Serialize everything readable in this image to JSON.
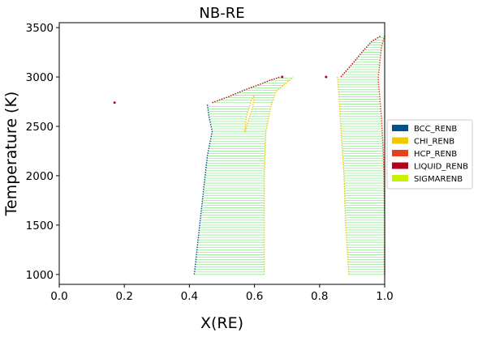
{
  "chart_data": {
    "type": "scatter",
    "title": "NB-RE",
    "xlabel": "X(RE)",
    "ylabel": "Temperature (K)",
    "xlim": [
      0.0,
      1.0
    ],
    "ylim": [
      900,
      3550
    ],
    "xticks": [
      "0.0",
      "0.2",
      "0.4",
      "0.6",
      "0.8",
      "1.0"
    ],
    "xtick_values": [
      0.0,
      0.2,
      0.4,
      0.6,
      0.8,
      1.0
    ],
    "yticks": [
      "1000",
      "1500",
      "2000",
      "2500",
      "3000",
      "3500"
    ],
    "ytick_values": [
      1000,
      1500,
      2000,
      2500,
      3000,
      3500
    ],
    "grid": false,
    "legend_position": "right",
    "legend": [
      {
        "label": "BCC_RENB",
        "color": "#00508a"
      },
      {
        "label": "CHI_RENB",
        "color": "#f0c800"
      },
      {
        "label": "HCP_RENB",
        "color": "#e8401c"
      },
      {
        "label": "LIQUID_RENB",
        "color": "#b4001e"
      },
      {
        "label": "SIGMARENB",
        "color": "#c8f000"
      }
    ],
    "tie_line_color": "#90ee90",
    "boundaries": {
      "bcc_sigma_left": {
        "color": "#00508a",
        "points": [
          [
            0.415,
            1000
          ],
          [
            0.425,
            1300
          ],
          [
            0.435,
            1600
          ],
          [
            0.445,
            1900
          ],
          [
            0.455,
            2200
          ],
          [
            0.47,
            2450
          ],
          [
            0.46,
            2600
          ],
          [
            0.455,
            2720
          ]
        ]
      },
      "sigma_right_upper": {
        "color": "#f0c800",
        "points": [
          [
            0.63,
            1000
          ],
          [
            0.63,
            1500
          ],
          [
            0.63,
            2000
          ],
          [
            0.635,
            2450
          ],
          [
            0.65,
            2700
          ],
          [
            0.665,
            2850
          ],
          [
            0.72,
            3000
          ]
        ]
      },
      "chi_left": {
        "color": "#f0c800",
        "points": [
          [
            0.89,
            1000
          ],
          [
            0.88,
            1500
          ],
          [
            0.875,
            2000
          ],
          [
            0.865,
            2500
          ],
          [
            0.86,
            2800
          ],
          [
            0.855,
            3000
          ]
        ]
      },
      "hcp_right": {
        "color": "#e8401c",
        "points": [
          [
            1.0,
            1000
          ],
          [
            1.0,
            1500
          ],
          [
            0.998,
            2000
          ],
          [
            0.995,
            2300
          ],
          [
            0.99,
            2600
          ],
          [
            0.98,
            2980
          ],
          [
            0.99,
            3300
          ],
          [
            1.0,
            3420
          ]
        ]
      },
      "liquid_left_top": {
        "color": "#b4001e",
        "points": [
          [
            0.47,
            2740
          ],
          [
            0.52,
            2800
          ],
          [
            0.57,
            2870
          ],
          [
            0.62,
            2930
          ],
          [
            0.65,
            2970
          ],
          [
            0.68,
            3000
          ]
        ]
      },
      "liquid_right_top": {
        "color": "#b4001e",
        "points": [
          [
            0.865,
            3000
          ],
          [
            0.9,
            3130
          ],
          [
            0.93,
            3250
          ],
          [
            0.96,
            3360
          ],
          [
            0.99,
            3420
          ]
        ]
      },
      "gap_loop": {
        "color": "#f0c800",
        "points": [
          [
            0.57,
            2440
          ],
          [
            0.575,
            2600
          ],
          [
            0.59,
            2760
          ],
          [
            0.6,
            2820
          ],
          [
            0.595,
            2700
          ],
          [
            0.58,
            2550
          ],
          [
            0.57,
            2440
          ]
        ]
      }
    },
    "isolated_points": [
      {
        "x": 0.17,
        "y": 2740,
        "color": "#b4001e"
      },
      {
        "x": 0.82,
        "y": 3000,
        "color": "#b4001e"
      },
      {
        "x": 0.685,
        "y": 3000,
        "color": "#b4001e"
      }
    ]
  }
}
